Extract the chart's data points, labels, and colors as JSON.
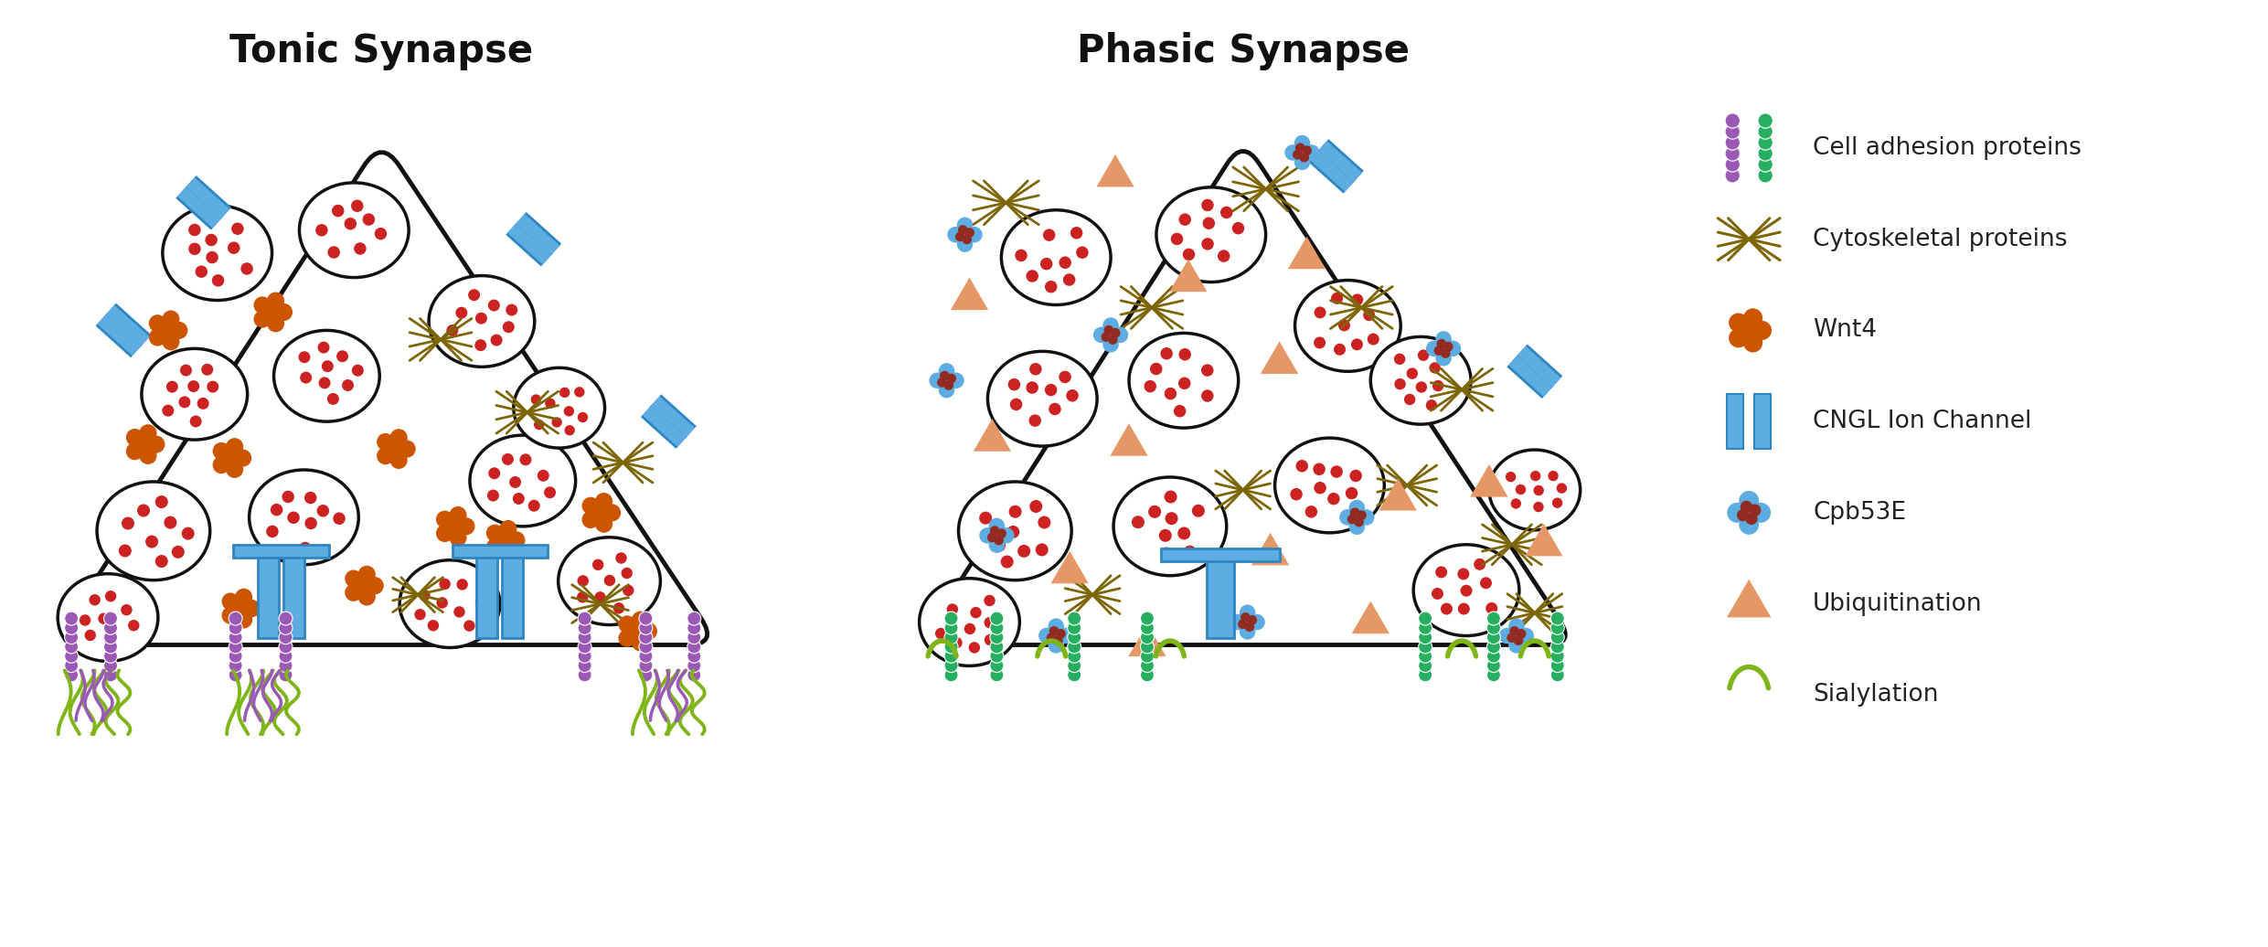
{
  "title_tonic": "Tonic Synapse",
  "title_phasic": "Phasic Synapse",
  "legend_items": [
    {
      "label": "Cell adhesion proteins",
      "type": "cell_adhesion"
    },
    {
      "label": "Cytoskeletal proteins",
      "type": "cytoskeletal"
    },
    {
      "label": "Wnt4",
      "type": "wnt4"
    },
    {
      "label": "CNGL Ion Channel",
      "type": "cngl"
    },
    {
      "label": "Cpb53E",
      "type": "cpb53e"
    },
    {
      "label": "Ubiquitination",
      "type": "ubiquitination"
    },
    {
      "label": "Sialylation",
      "type": "sialylation"
    }
  ],
  "colors": {
    "purple": "#9B59B6",
    "green": "#27AE60",
    "brown": "#7D6608",
    "orange_wnt": "#CC5500",
    "blue": "#5DADE2",
    "dark_blue": "#2E86C1",
    "red": "#CC2222",
    "cpb_blue": "#5DADE2",
    "cpb_red": "#922B21",
    "gold": "#E59866",
    "yellow_green": "#7FB519",
    "background": "#FFFFFF",
    "outline": "#111111"
  },
  "figsize": [
    24.81,
    10.36
  ],
  "dpi": 100
}
